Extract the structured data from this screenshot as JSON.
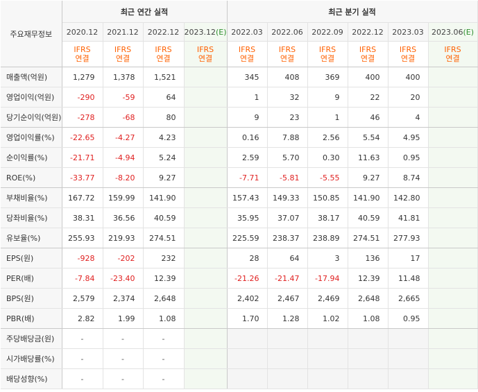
{
  "table": {
    "corner_label": "주요재무정보",
    "group_annual": "최근 연간 실적",
    "group_quarter": "최근 분기 실적",
    "periods": [
      "2020.12",
      "2021.12",
      "2022.12",
      "2023.12",
      "2022.03",
      "2022.06",
      "2022.09",
      "2022.12",
      "2023.03",
      "2023.06"
    ],
    "estimate_suffix": "(E)",
    "ifrs_line1": "IFRS",
    "ifrs_line2": "연결",
    "rows": [
      {
        "label": "매출액(억원)",
        "values": [
          "1,279",
          "1,378",
          "1,521",
          "",
          "345",
          "408",
          "369",
          "400",
          "400",
          ""
        ]
      },
      {
        "label": "영업이익(억원)",
        "values": [
          "-290",
          "-59",
          "64",
          "",
          "1",
          "32",
          "9",
          "22",
          "20",
          ""
        ]
      },
      {
        "label": "당기순이익(억원)",
        "values": [
          "-278",
          "-68",
          "80",
          "",
          "9",
          "23",
          "1",
          "46",
          "4",
          ""
        ]
      },
      {
        "label": "영업이익률(%)",
        "values": [
          "-22.65",
          "-4.27",
          "4.23",
          "",
          "0.16",
          "7.88",
          "2.56",
          "5.54",
          "4.95",
          ""
        ]
      },
      {
        "label": "순이익률(%)",
        "values": [
          "-21.71",
          "-4.94",
          "5.24",
          "",
          "2.59",
          "5.70",
          "0.30",
          "11.63",
          "0.95",
          ""
        ]
      },
      {
        "label": "ROE(%)",
        "values": [
          "-33.77",
          "-8.20",
          "9.27",
          "",
          "-7.71",
          "-5.81",
          "-5.55",
          "9.27",
          "8.74",
          ""
        ]
      },
      {
        "label": "부채비율(%)",
        "values": [
          "167.72",
          "159.99",
          "141.90",
          "",
          "157.43",
          "149.33",
          "150.85",
          "141.90",
          "142.80",
          ""
        ]
      },
      {
        "label": "당좌비율(%)",
        "values": [
          "38.31",
          "36.56",
          "40.59",
          "",
          "35.95",
          "37.07",
          "38.17",
          "40.59",
          "41.81",
          ""
        ]
      },
      {
        "label": "유보율(%)",
        "values": [
          "255.93",
          "219.93",
          "274.51",
          "",
          "225.59",
          "238.37",
          "238.89",
          "274.51",
          "277.93",
          ""
        ]
      },
      {
        "label": "EPS(원)",
        "values": [
          "-928",
          "-202",
          "232",
          "",
          "28",
          "64",
          "3",
          "136",
          "17",
          ""
        ]
      },
      {
        "label": "PER(배)",
        "values": [
          "-7.84",
          "-23.40",
          "12.39",
          "",
          "-21.26",
          "-21.47",
          "-17.94",
          "12.39",
          "11.48",
          ""
        ]
      },
      {
        "label": "BPS(원)",
        "values": [
          "2,579",
          "2,374",
          "2,648",
          "",
          "2,402",
          "2,467",
          "2,469",
          "2,648",
          "2,665",
          ""
        ]
      },
      {
        "label": "PBR(배)",
        "values": [
          "2.82",
          "1.99",
          "1.08",
          "",
          "1.70",
          "1.28",
          "1.02",
          "1.08",
          "0.95",
          ""
        ]
      },
      {
        "label": "주당배당금(원)",
        "values": [
          "-",
          "-",
          "-",
          "",
          "",
          "",
          "",
          "",
          "",
          ""
        ]
      },
      {
        "label": "시가배당률(%)",
        "values": [
          "-",
          "-",
          "-",
          "",
          "",
          "",
          "",
          "",
          "",
          ""
        ]
      },
      {
        "label": "배당성향(%)",
        "values": [
          "-",
          "-",
          "-",
          "",
          "",
          "",
          "",
          "",
          "",
          ""
        ]
      }
    ]
  },
  "colors": {
    "negative": "#e02020",
    "ifrs": "#ff6000",
    "estimate_mark": "#2f8f2f",
    "estimate_bg": "#f3f9f1",
    "header_bg": "#f7f7f7"
  }
}
